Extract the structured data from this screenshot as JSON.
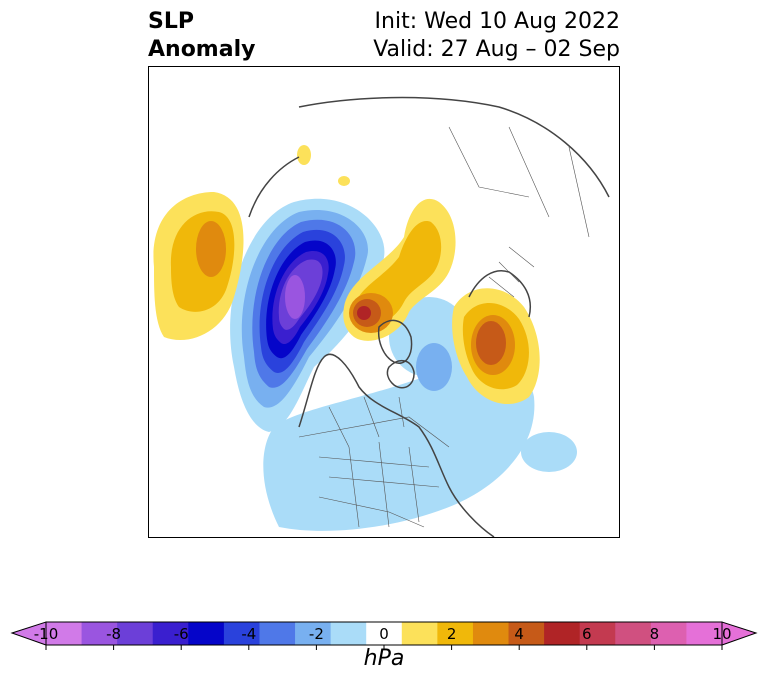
{
  "header": {
    "title_line1": "SLP",
    "title_line2": "Anomaly",
    "init_text": "Init: Wed 10 Aug 2022",
    "valid_text": "Valid: 27 Aug – 02 Sep"
  },
  "colorbar": {
    "units": "hPa",
    "tick_labels": [
      "-10",
      "-8",
      "-6",
      "-4",
      "-2",
      "0",
      "2",
      "4",
      "6",
      "8",
      "10"
    ],
    "levels": [
      -10,
      -9,
      -8,
      -7,
      -6,
      -5,
      -4,
      -3,
      -2,
      -1,
      1,
      2,
      3,
      4,
      5,
      6,
      7,
      8,
      9,
      10
    ],
    "colors": [
      "#d17ae8",
      "#9a55e0",
      "#6c3fd8",
      "#3a1fcf",
      "#0505c9",
      "#2a42dc",
      "#4f78e8",
      "#78b0f0",
      "#aadcf8",
      "#ffffff",
      "#fce15a",
      "#f0b80a",
      "#e08a0e",
      "#c65a18",
      "#b02426",
      "#c33a50",
      "#d05080",
      "#dd60b0",
      "#e570d8"
    ],
    "extend": "both"
  },
  "map": {
    "projection": "north-polar stereographic",
    "field": "sea level pressure anomaly",
    "features": [
      {
        "name": "north-pacific-high",
        "sign": "positive",
        "peak_hpa": 4
      },
      {
        "name": "north-pacific-low",
        "sign": "negative",
        "peak_hpa": -9
      },
      {
        "name": "beaufort-high",
        "sign": "positive",
        "peak_hpa": 6
      },
      {
        "name": "kara-sea-high",
        "sign": "positive",
        "peak_hpa": 3
      },
      {
        "name": "north-atlantic-high",
        "sign": "positive",
        "peak_hpa": 5
      },
      {
        "name": "eastern-north-america-low",
        "sign": "negative",
        "peak_hpa": -2
      }
    ]
  }
}
